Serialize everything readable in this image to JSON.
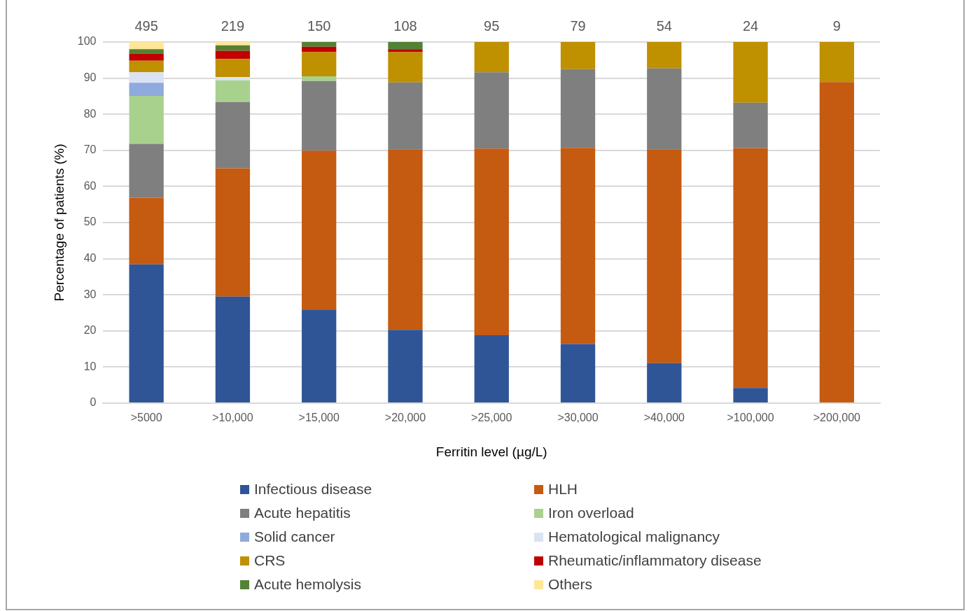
{
  "chart_data": {
    "type": "bar",
    "stacked": true,
    "xlabel": "Ferritin level (µg/L)",
    "ylabel": "Percentage of patients (%)",
    "categories": [
      ">5000",
      ">10,000",
      ">15,000",
      ">20,000",
      ">25,000",
      ">30,000",
      ">40,000",
      ">100,000",
      ">200,000"
    ],
    "series": [
      {
        "name": "Infectious disease",
        "color": "#2f5597",
        "values": [
          38.4,
          29.5,
          25.9,
          20.3,
          18.8,
          16.4,
          11.1,
          4.2,
          0
        ]
      },
      {
        "name": "HLH",
        "color": "#c55a11",
        "values": [
          18.5,
          35.5,
          44.0,
          50.0,
          51.7,
          54.3,
          59.2,
          66.4,
          88.9
        ]
      },
      {
        "name": "Acute hepatitis",
        "color": "#7f7f7f",
        "values": [
          14.9,
          18.4,
          19.3,
          18.5,
          21.1,
          21.8,
          22.4,
          12.6,
          0
        ]
      },
      {
        "name": "Iron overload",
        "color": "#a9d18e",
        "values": [
          13.3,
          6.0,
          1.3,
          0,
          0,
          0,
          0,
          0,
          0
        ]
      },
      {
        "name": "Solid cancer",
        "color": "#8faadc",
        "values": [
          3.6,
          0,
          0,
          0,
          0,
          0,
          0,
          0,
          0
        ]
      },
      {
        "name": "Hematological malignancy",
        "color": "#dae3f3",
        "values": [
          2.9,
          0.9,
          0,
          0,
          0,
          0,
          0,
          0,
          0
        ]
      },
      {
        "name": "CRS",
        "color": "#bf9000",
        "values": [
          3.2,
          5.0,
          6.7,
          8.4,
          8.4,
          7.5,
          7.3,
          16.8,
          11.1
        ]
      },
      {
        "name": "Rheumatic/inflammatory disease",
        "color": "#c00000",
        "values": [
          2.0,
          2.3,
          1.5,
          0.8,
          0,
          0,
          0,
          0,
          0
        ]
      },
      {
        "name": "Acute hemolysis",
        "color": "#548235",
        "values": [
          1.2,
          1.5,
          1.3,
          2.0,
          0,
          0,
          0,
          0,
          0
        ]
      },
      {
        "name": "Others",
        "color": "#ffe699",
        "values": [
          2.0,
          0.9,
          0,
          0,
          0,
          0,
          0,
          0,
          0
        ]
      }
    ],
    "annotations": [
      "495",
      "219",
      "150",
      "108",
      "95",
      "79",
      "54",
      "24",
      "9"
    ],
    "ylim": [
      0,
      100
    ],
    "yticks": [
      0,
      10,
      20,
      30,
      40,
      50,
      60,
      70,
      80,
      90,
      100
    ],
    "grid": "y",
    "legend": "bottom"
  }
}
